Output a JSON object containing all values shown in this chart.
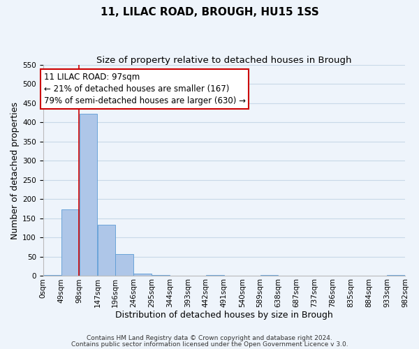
{
  "title": "11, LILAC ROAD, BROUGH, HU15 1SS",
  "subtitle": "Size of property relative to detached houses in Brough",
  "xlabel": "Distribution of detached houses by size in Brough",
  "ylabel": "Number of detached properties",
  "bar_edges": [
    0,
    49,
    98,
    147,
    196,
    245,
    294,
    343,
    392,
    441,
    490,
    539,
    588,
    637,
    686,
    735,
    784,
    833,
    882,
    931,
    980
  ],
  "bar_heights": [
    3,
    174,
    422,
    133,
    58,
    7,
    3,
    0,
    0,
    3,
    0,
    0,
    2,
    0,
    0,
    0,
    0,
    0,
    0,
    3
  ],
  "tick_labels": [
    "0sqm",
    "49sqm",
    "98sqm",
    "147sqm",
    "196sqm",
    "246sqm",
    "295sqm",
    "344sqm",
    "393sqm",
    "442sqm",
    "491sqm",
    "540sqm",
    "589sqm",
    "638sqm",
    "687sqm",
    "737sqm",
    "786sqm",
    "835sqm",
    "884sqm",
    "933sqm",
    "982sqm"
  ],
  "bar_color": "#aec6e8",
  "bar_edge_color": "#5b9bd5",
  "grid_color": "#c8d8e8",
  "background_color": "#eef4fb",
  "property_line_x": 97,
  "property_line_color": "#cc0000",
  "annotation_text": "11 LILAC ROAD: 97sqm\n← 21% of detached houses are smaller (167)\n79% of semi-detached houses are larger (630) →",
  "annotation_box_color": "#ffffff",
  "annotation_box_edge_color": "#cc0000",
  "ylim": [
    0,
    550
  ],
  "yticks": [
    0,
    50,
    100,
    150,
    200,
    250,
    300,
    350,
    400,
    450,
    500,
    550
  ],
  "footer_line1": "Contains HM Land Registry data © Crown copyright and database right 2024.",
  "footer_line2": "Contains public sector information licensed under the Open Government Licence v 3.0.",
  "title_fontsize": 11,
  "subtitle_fontsize": 9.5,
  "axis_label_fontsize": 9,
  "tick_fontsize": 7.5,
  "annotation_fontsize": 8.5,
  "footer_fontsize": 6.5
}
